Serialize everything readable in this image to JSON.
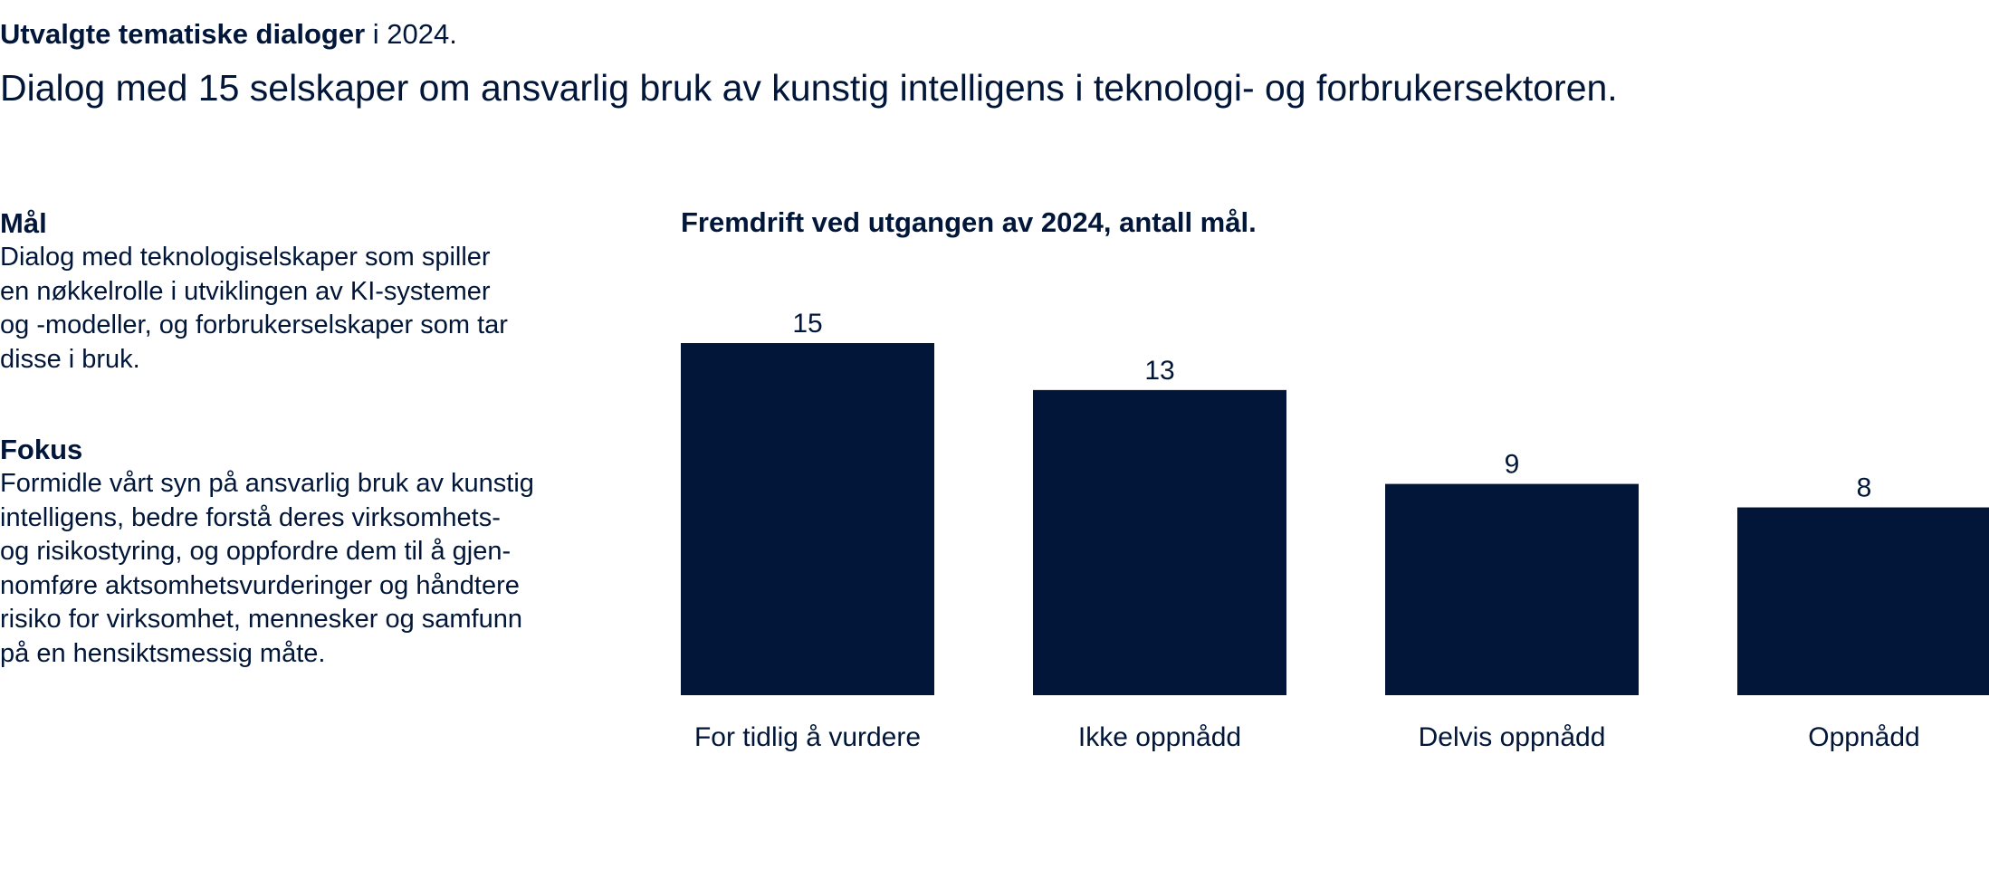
{
  "header": {
    "title_bold": "Utvalgte tematiske dialoger",
    "title_rest": " i 2024."
  },
  "subtitle": "Dialog med 15 selskaper om ansvarlig bruk av kunstig intelligens i teknologi- og forbrukersektoren.",
  "goal": {
    "heading": "Mål",
    "body": "Dialog med teknologiselskaper som spiller\nen nøkkelrolle i utviklingen av KI-systemer\nog -modeller, og forbrukerselskaper som tar\ndisse i bruk."
  },
  "focus": {
    "heading": "Fokus",
    "body": "Formidle vårt syn på ansvarlig bruk av kunstig\nintelligens, bedre forstå deres virksomhets-\nog risikostyring, og oppfordre dem til å gjen-\nnomføre aktsomhetsvurderinger og håndtere\nrisiko for virksomhet, mennesker og samfunn\npå en hensiktsmessig måte."
  },
  "chart_data": {
    "type": "bar",
    "title": "Fremdrift ved utgangen av 2024, antall mål.",
    "categories": [
      "For tidlig å vurdere",
      "Ikke oppnådd",
      "Delvis oppnådd",
      "Oppnådd"
    ],
    "values": [
      15,
      13,
      9,
      8
    ],
    "xlabel": "",
    "ylabel": "",
    "ylim": [
      0,
      15
    ],
    "grid": false,
    "bar_color": "#011638",
    "text_color": "#011638"
  }
}
